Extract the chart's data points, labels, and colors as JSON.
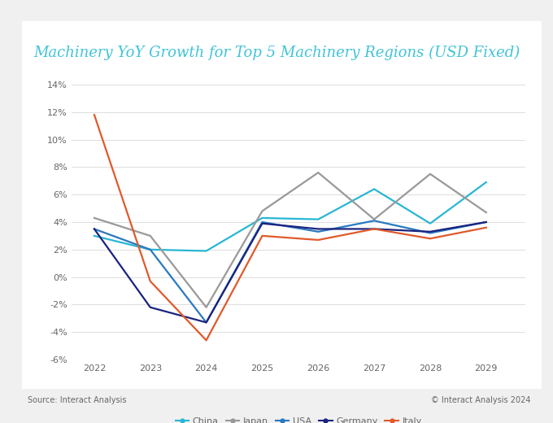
{
  "title": "Machinery YoY Growth for Top 5 Machinery Regions (USD Fixed)",
  "title_color": "#40c4d8",
  "years": [
    2022,
    2023,
    2024,
    2025,
    2026,
    2027,
    2028,
    2029
  ],
  "series": {
    "China": {
      "values": [
        3.0,
        2.0,
        1.9,
        4.3,
        4.2,
        6.4,
        3.9,
        6.9
      ],
      "color": "#29b6d4",
      "linewidth": 1.6
    },
    "Japan": {
      "values": [
        4.3,
        3.0,
        -2.2,
        4.8,
        7.6,
        4.2,
        7.5,
        4.7
      ],
      "color": "#999999",
      "linewidth": 1.6
    },
    "USA": {
      "values": [
        3.5,
        2.0,
        -3.3,
        4.0,
        3.3,
        4.1,
        3.2,
        4.0
      ],
      "color": "#2979c0",
      "linewidth": 1.6
    },
    "Germany": {
      "values": [
        3.5,
        -2.2,
        -3.3,
        3.9,
        3.5,
        3.5,
        3.3,
        4.0
      ],
      "color": "#1a237e",
      "linewidth": 1.6
    },
    "Italy": {
      "values": [
        11.8,
        -0.3,
        -4.6,
        3.0,
        2.7,
        3.5,
        2.8,
        3.6
      ],
      "color": "#e05a2b",
      "linewidth": 1.6
    }
  },
  "ylim": [
    -6,
    14
  ],
  "yticks": [
    -6,
    -4,
    -2,
    0,
    2,
    4,
    6,
    8,
    10,
    12,
    14
  ],
  "ytick_labels": [
    "-6%",
    "-4%",
    "-2%",
    "0%",
    "2%",
    "4%",
    "6%",
    "8%",
    "10%",
    "12%",
    "14%"
  ],
  "source_text": "Source: Interact Analysis",
  "copyright_text": "© Interact Analysis 2024",
  "background_color": "#ffffff",
  "outer_background": "#f0f0f0",
  "grid_color": "#d8d8d8",
  "tick_color": "#666666",
  "legend_order": [
    "China",
    "Japan",
    "USA",
    "Germany",
    "Italy"
  ],
  "title_fontsize": 13.0,
  "tick_fontsize": 8.0,
  "legend_fontsize": 8.0
}
